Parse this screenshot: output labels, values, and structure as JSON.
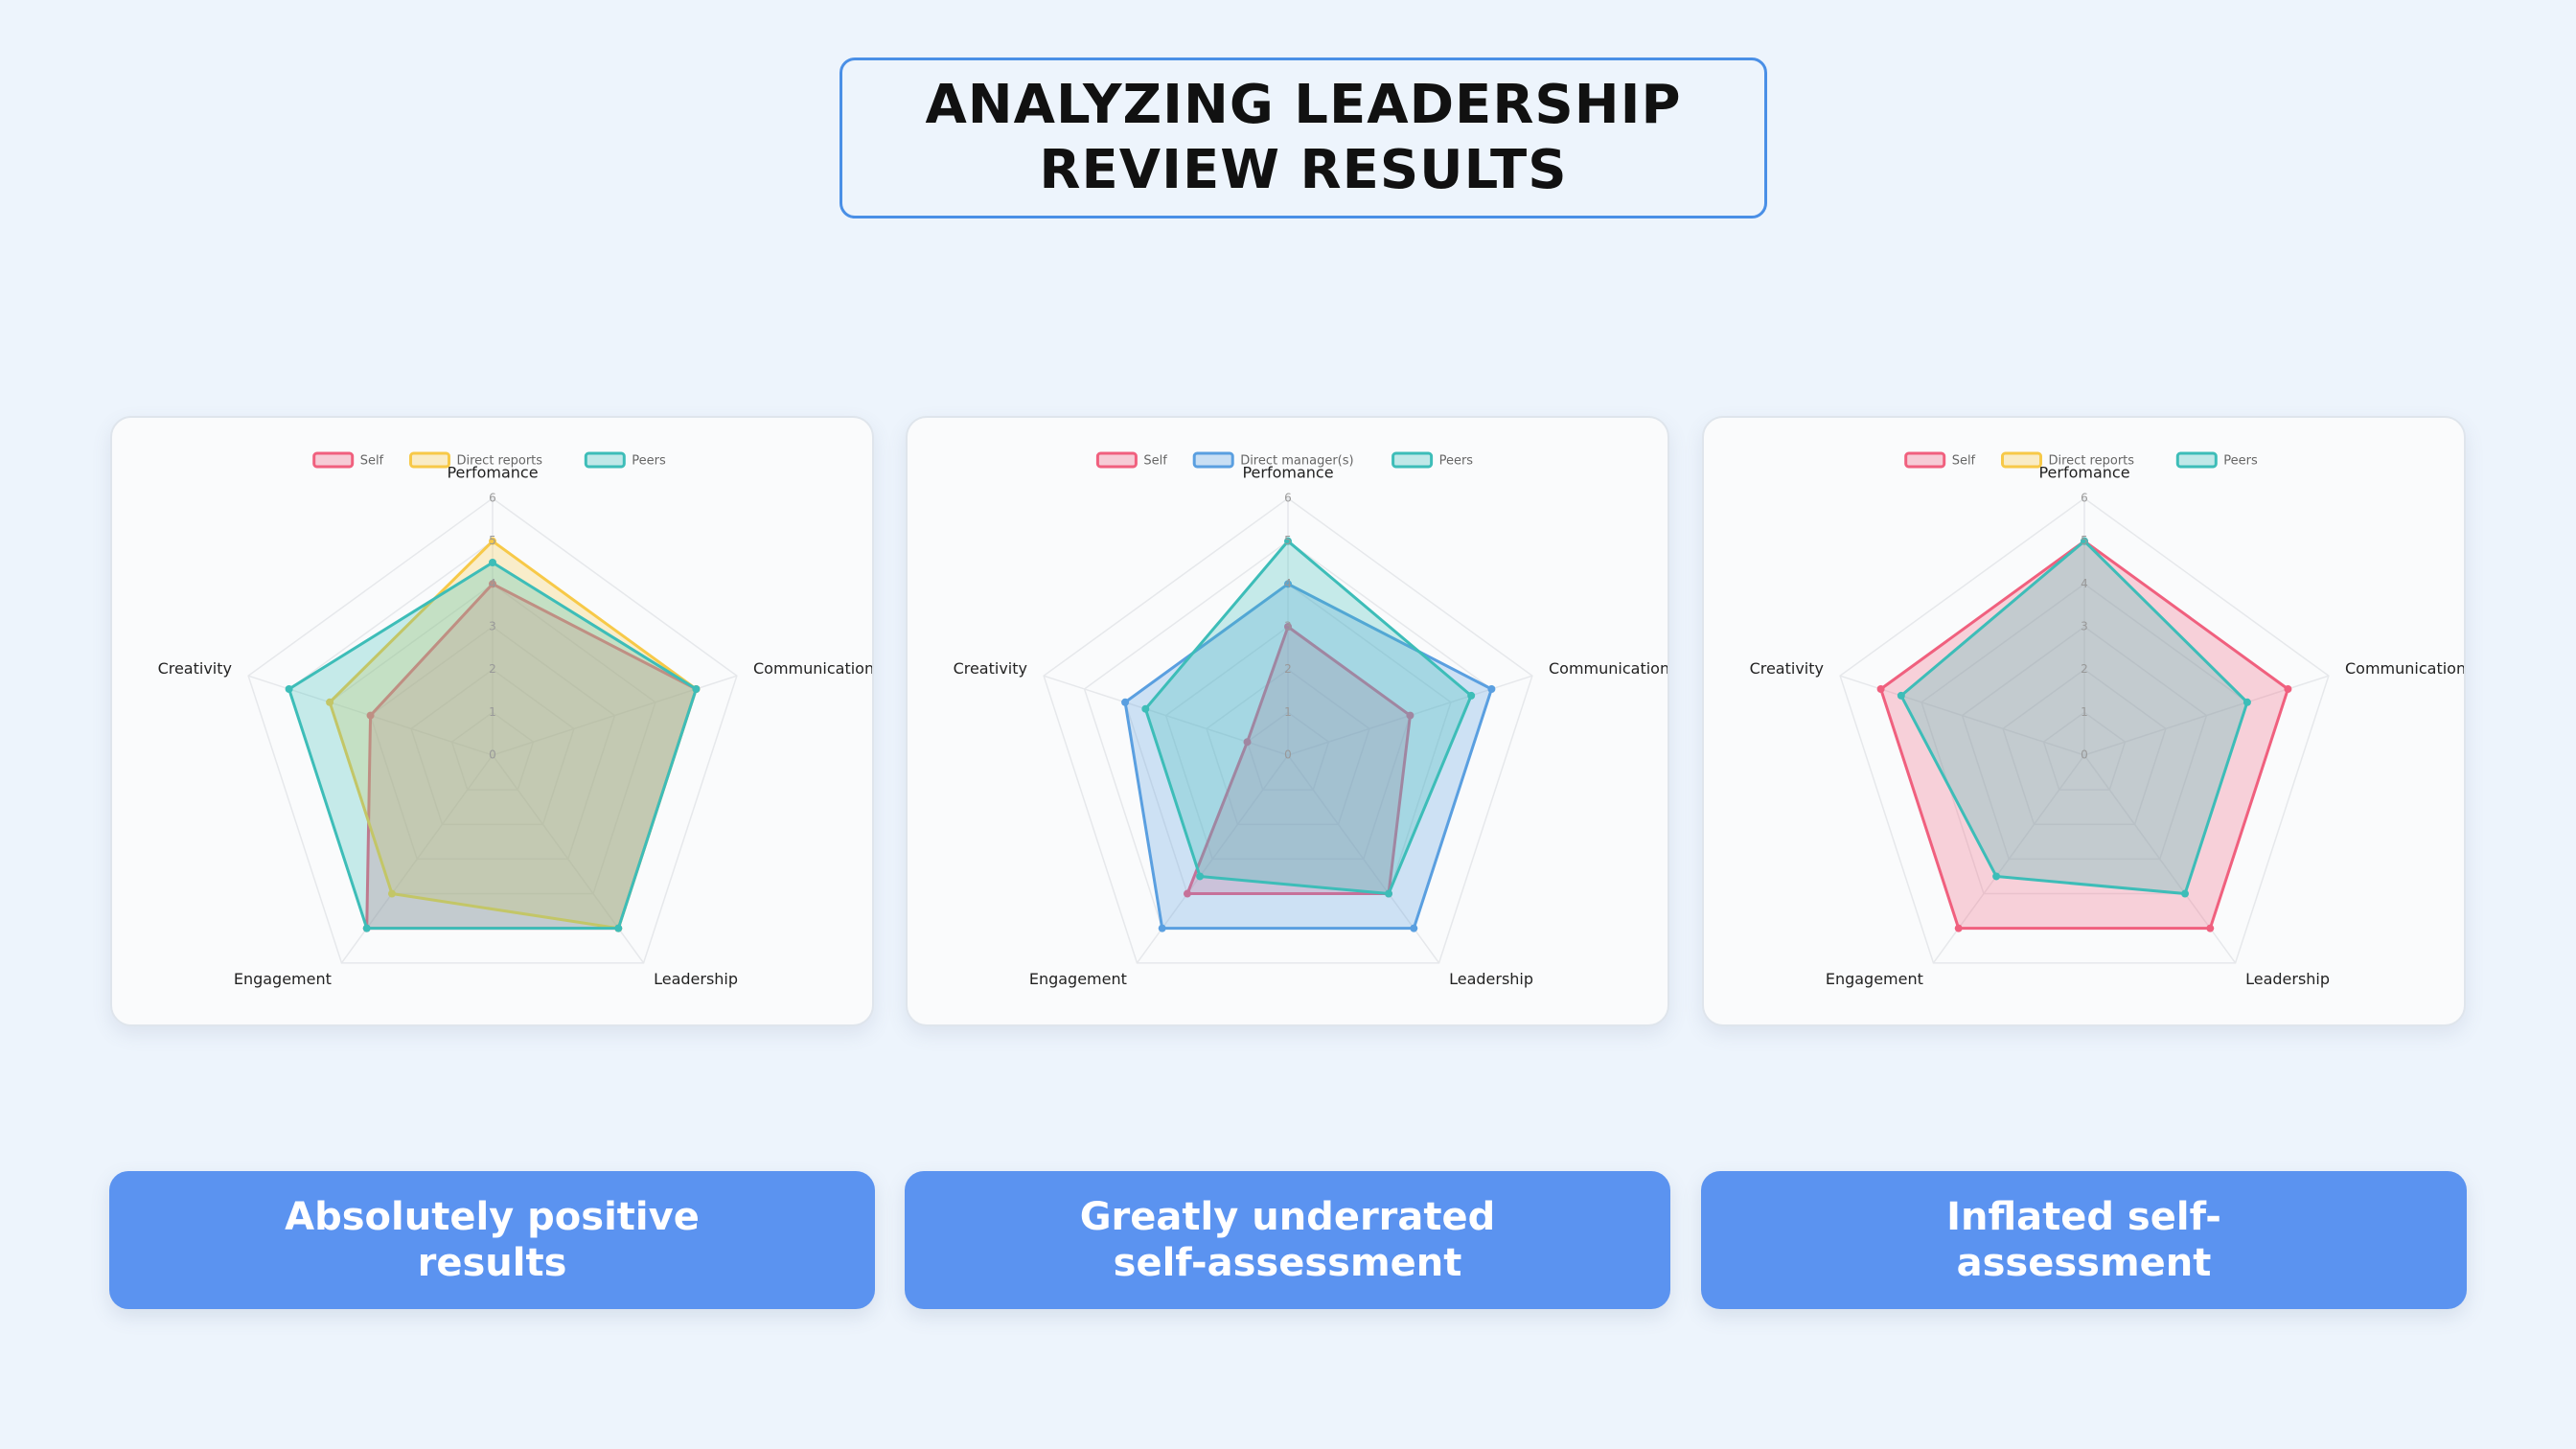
{
  "title": "ANALYZING LEADERSHIP REVIEW RESULTS",
  "chart_data": [
    {
      "type": "radar",
      "categories": [
        "Perfomance",
        "Communication",
        "Leadership",
        "Engagement",
        "Creativity"
      ],
      "series": [
        {
          "name": "Self",
          "color": "#f0607e",
          "values": [
            4,
            5,
            5,
            5,
            3
          ]
        },
        {
          "name": "Direct reports",
          "color": "#f7c948",
          "values": [
            5,
            5,
            5,
            4,
            4
          ]
        },
        {
          "name": "Peers",
          "color": "#3dbdb8",
          "values": [
            4.5,
            5,
            5,
            5,
            5
          ]
        }
      ],
      "rlim": [
        0,
        6
      ],
      "rticks": [
        0,
        1,
        2,
        3,
        4,
        5,
        6
      ]
    },
    {
      "type": "radar",
      "categories": [
        "Perfomance",
        "Communication",
        "Leadership",
        "Engagement",
        "Creativity"
      ],
      "series": [
        {
          "name": "Self",
          "color": "#f0607e",
          "values": [
            3,
            3,
            4,
            4,
            1
          ]
        },
        {
          "name": "Direct manager(s)",
          "color": "#5a9fe0",
          "values": [
            4,
            5,
            5,
            5,
            4
          ]
        },
        {
          "name": "Peers",
          "color": "#3dbdb8",
          "values": [
            5,
            4.5,
            4,
            3.5,
            3.5
          ]
        }
      ],
      "rlim": [
        0,
        6
      ],
      "rticks": [
        0,
        1,
        2,
        3,
        4,
        5,
        6
      ]
    },
    {
      "type": "radar",
      "categories": [
        "Perfomance",
        "Communication",
        "Leadership",
        "Engagement",
        "Creativity"
      ],
      "series": [
        {
          "name": "Self",
          "color": "#f0607e",
          "values": [
            5,
            5,
            5,
            5,
            5
          ]
        },
        {
          "name": "Direct reports",
          "color": "#f7c948",
          "values": [
            null,
            null,
            null,
            null,
            null
          ]
        },
        {
          "name": "Peers",
          "color": "#3dbdb8",
          "values": [
            5,
            4,
            4,
            3.5,
            4.5
          ]
        }
      ],
      "rlim": [
        0,
        6
      ],
      "rticks": [
        0,
        1,
        2,
        3,
        4,
        5,
        6
      ]
    }
  ],
  "captions": [
    "Absolutely positive results",
    "Greatly underrated self-assessment",
    "Inflated self-assessment"
  ]
}
